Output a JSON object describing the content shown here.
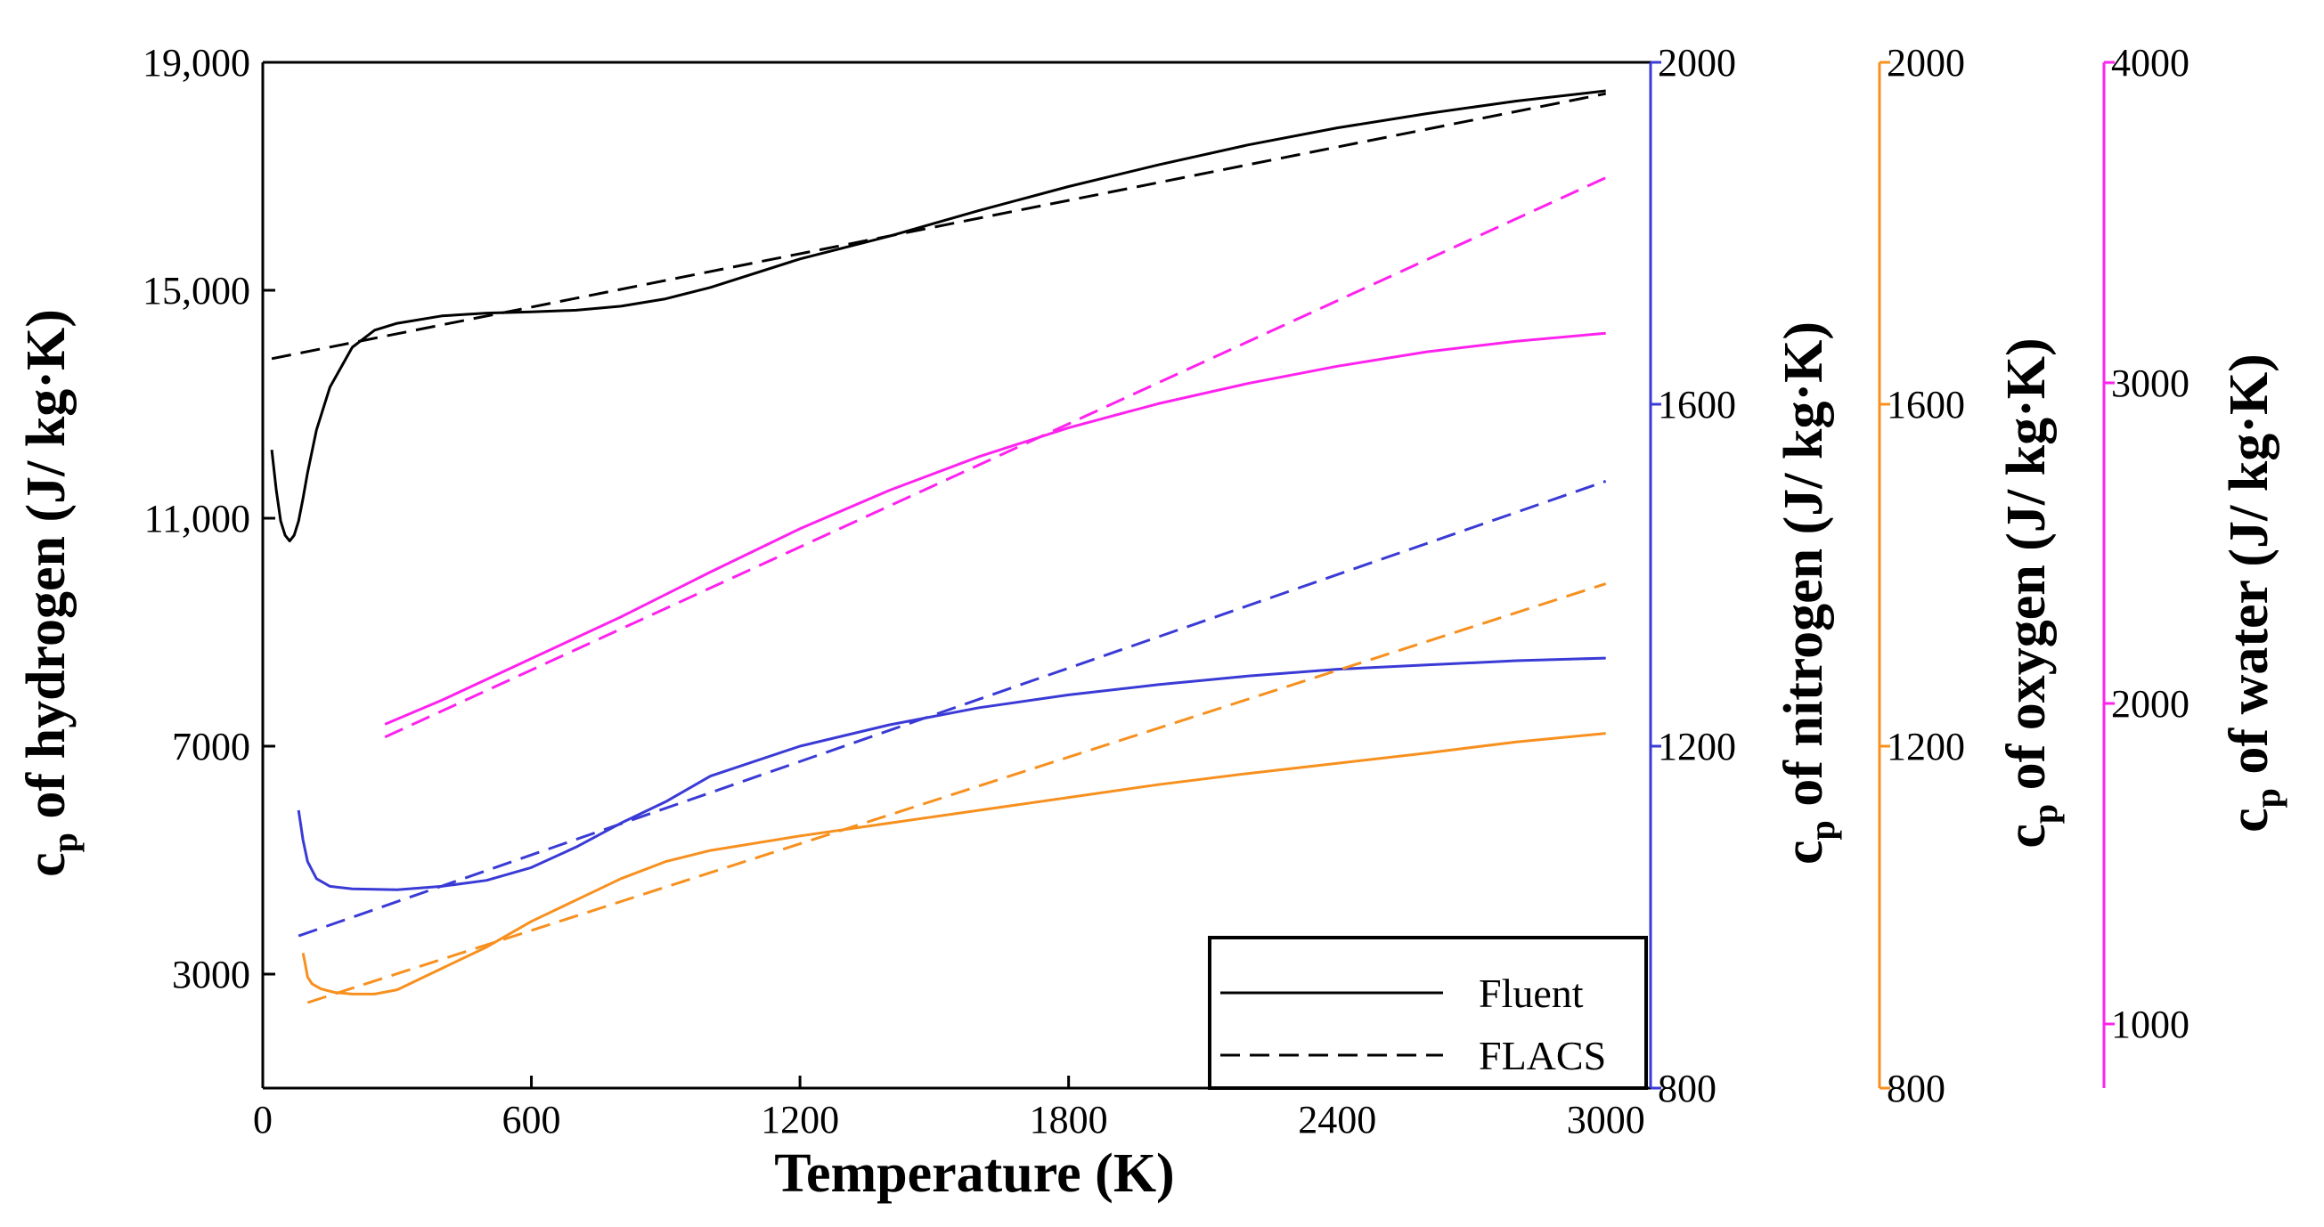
{
  "chart_data": {
    "type": "line",
    "xlabel": "Temperature (K)",
    "xlim": [
      0,
      3100
    ],
    "xticks": [
      0,
      600,
      1200,
      1800,
      2400,
      3000
    ],
    "xtick_labels": [
      "0",
      "600",
      "1200",
      "1800",
      "2400",
      "3000"
    ],
    "axes": [
      {
        "id": "hydrogen",
        "label_prefix": "c",
        "label_sub": "p",
        "label_suffix": " of hydrogen (J/ kg·K)",
        "color": "#000000",
        "ylim": [
          1000,
          19000
        ],
        "ticks": [
          3000,
          7000,
          11000,
          15000,
          19000
        ],
        "tick_labels": [
          "3000",
          "7000",
          "11,000",
          "15,000",
          "19,000"
        ]
      },
      {
        "id": "nitrogen",
        "label_prefix": "c",
        "label_sub": "p",
        "label_suffix": " of nitrogen (J/ kg·K)",
        "color": "#3a3ad6",
        "ylim": [
          800,
          2000
        ],
        "ticks": [
          800,
          1200,
          1600,
          2000
        ],
        "tick_labels": [
          "800",
          "1200",
          "1600",
          "2000"
        ]
      },
      {
        "id": "oxygen",
        "label_prefix": "c",
        "label_sub": "p",
        "label_suffix": " of oxygen (J/ kg·K)",
        "color": "#f7901e",
        "ylim": [
          800,
          2000
        ],
        "ticks": [
          800,
          1200,
          1600,
          2000
        ],
        "tick_labels": [
          "800",
          "1200",
          "1600",
          "2000"
        ]
      },
      {
        "id": "water",
        "label_prefix": "c",
        "label_sub": "p",
        "label_suffix": " of water (J/ kg·K)",
        "color": "#ff22ee",
        "ylim": [
          800,
          4000
        ],
        "ticks": [
          1000,
          2000,
          3000,
          4000
        ],
        "tick_labels": [
          "1000",
          "2000",
          "3000",
          "4000"
        ]
      }
    ],
    "series": [
      {
        "name": "Hydrogen – Fluent",
        "axis": "hydrogen",
        "style": "solid",
        "x": [
          20,
          30,
          40,
          50,
          60,
          70,
          80,
          90,
          100,
          120,
          150,
          200,
          250,
          300,
          400,
          500,
          600,
          700,
          800,
          900,
          1000,
          1200,
          1400,
          1600,
          1800,
          2000,
          2200,
          2400,
          2600,
          2800,
          3000
        ],
        "y": [
          12200,
          11500,
          10950,
          10700,
          10600,
          10700,
          10950,
          11350,
          11800,
          12550,
          13300,
          14000,
          14300,
          14420,
          14550,
          14600,
          14620,
          14650,
          14720,
          14850,
          15050,
          15550,
          15950,
          16400,
          16820,
          17200,
          17550,
          17850,
          18100,
          18320,
          18500
        ]
      },
      {
        "name": "Hydrogen – FLACS",
        "axis": "hydrogen",
        "style": "dashed",
        "x": [
          20,
          3000
        ],
        "y": [
          13800,
          18450
        ]
      },
      {
        "name": "Nitrogen – Fluent",
        "axis": "nitrogen",
        "style": "solid",
        "x": [
          80,
          90,
          100,
          120,
          150,
          200,
          300,
          400,
          500,
          600,
          700,
          800,
          900,
          1000,
          1200,
          1400,
          1600,
          1800,
          2000,
          2200,
          2400,
          2600,
          2800,
          3000
        ],
        "y": [
          1125,
          1090,
          1065,
          1045,
          1036,
          1033,
          1032,
          1036,
          1043,
          1058,
          1082,
          1110,
          1135,
          1165,
          1200,
          1225,
          1245,
          1260,
          1272,
          1282,
          1290,
          1295,
          1300,
          1303
        ]
      },
      {
        "name": "Nitrogen – FLACS",
        "axis": "nitrogen",
        "style": "dashed",
        "x": [
          80,
          3000
        ],
        "y": [
          978,
          1510
        ]
      },
      {
        "name": "Oxygen – Fluent",
        "axis": "oxygen",
        "style": "solid",
        "x": [
          90,
          95,
          100,
          110,
          130,
          160,
          200,
          250,
          300,
          400,
          500,
          600,
          700,
          800,
          900,
          1000,
          1200,
          1400,
          1600,
          1800,
          2000,
          2200,
          2400,
          2600,
          2800,
          3000
        ],
        "y": [
          958,
          945,
          930,
          922,
          916,
          912,
          910,
          910,
          915,
          940,
          965,
          995,
          1020,
          1045,
          1065,
          1078,
          1095,
          1110,
          1125,
          1140,
          1155,
          1168,
          1180,
          1192,
          1205,
          1215
        ]
      },
      {
        "name": "Oxygen – FLACS",
        "axis": "oxygen",
        "style": "dashed",
        "x": [
          100,
          3000
        ],
        "y": [
          900,
          1390
        ]
      },
      {
        "name": "Water – Fluent",
        "axis": "water",
        "style": "solid",
        "x": [
          273,
          400,
          600,
          800,
          1000,
          1200,
          1400,
          1600,
          1800,
          2000,
          2200,
          2400,
          2600,
          2800,
          3000
        ],
        "y": [
          1935,
          2010,
          2140,
          2270,
          2410,
          2545,
          2665,
          2770,
          2860,
          2935,
          2998,
          3052,
          3097,
          3130,
          3155
        ]
      },
      {
        "name": "Water – FLACS",
        "axis": "water",
        "style": "dashed",
        "x": [
          273,
          3000
        ],
        "y": [
          1895,
          3640
        ]
      }
    ],
    "legend": {
      "position": "bottom-right",
      "entries": [
        {
          "label": "Fluent",
          "style": "solid"
        },
        {
          "label": "FLACS",
          "style": "dashed"
        }
      ]
    }
  }
}
